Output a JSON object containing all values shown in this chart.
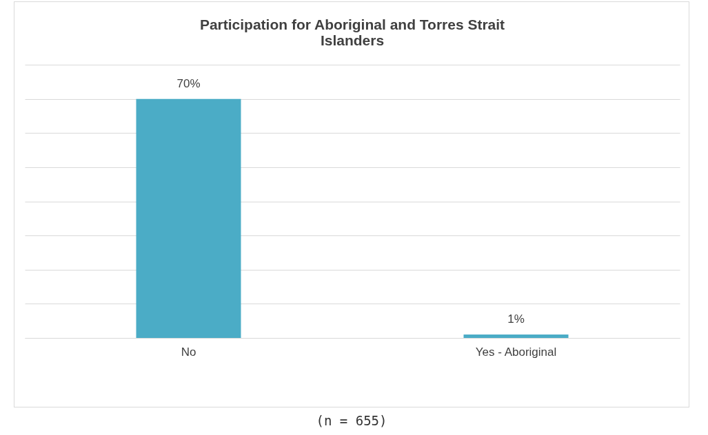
{
  "chart_data": {
    "type": "bar",
    "title": "Participation for Aboriginal and Torres Strait Islanders",
    "categories": [
      "No",
      "Yes - Aboriginal"
    ],
    "values": [
      70,
      1
    ],
    "value_labels": [
      "70%",
      "1%"
    ],
    "color": "#4bacc6",
    "ylim": [
      0,
      80
    ],
    "yticks": [
      {
        "value": 0,
        "label": null
      },
      {
        "value": 10,
        "label": null
      },
      {
        "value": 20,
        "label": null
      },
      {
        "value": 30,
        "label": null
      },
      {
        "value": 40,
        "label": null
      },
      {
        "value": 50,
        "label": null
      },
      {
        "value": 60,
        "label": null
      },
      {
        "value": 70,
        "label": null
      },
      {
        "value": 80,
        "label": null
      }
    ],
    "tick_labels": "x",
    "grid": "y",
    "annotations": [
      "(n = 655)"
    ]
  }
}
